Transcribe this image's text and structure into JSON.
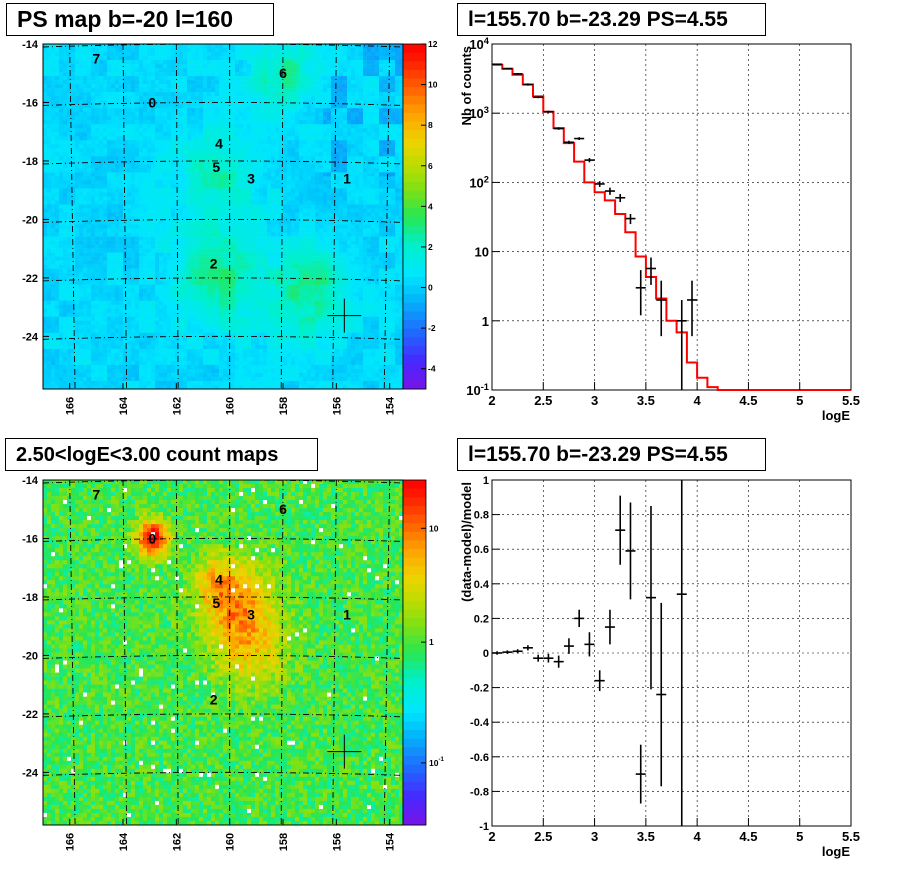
{
  "panels": {
    "ps_map": {
      "title": "PS map b=-20 l=160"
    },
    "spectrum": {
      "title": "l=155.70 b=-23.29 PS=4.55"
    },
    "count_map": {
      "title": "2.50<logE<3.00 count maps"
    },
    "residual": {
      "title": "l=155.70 b=-23.29 PS=4.55"
    }
  },
  "chart_data": [
    {
      "id": "ps_map",
      "type": "heatmap",
      "title": "PS map b=-20 l=160",
      "xlabel": "",
      "ylabel": "",
      "x_ticks": [
        "166",
        "164",
        "162",
        "160",
        "158",
        "156",
        "154"
      ],
      "y_ticks": [
        "-14",
        "-16",
        "-18",
        "-20",
        "-22",
        "-24"
      ],
      "xlim": [
        167,
        153.5
      ],
      "ylim": [
        -25.8,
        -14
      ],
      "zlim": [
        -5,
        12
      ],
      "z_ticks": [
        "-4",
        "-2",
        "0",
        "2",
        "4",
        "6",
        "8",
        "10",
        "12"
      ],
      "sources": [
        {
          "label": "7",
          "l": 165.0,
          "b": -14.5
        },
        {
          "label": "6",
          "l": 158.0,
          "b": -15.0
        },
        {
          "label": "0",
          "l": 162.9,
          "b": -16.0
        },
        {
          "label": "4",
          "l": 160.4,
          "b": -17.4
        },
        {
          "label": "5",
          "l": 160.5,
          "b": -18.2
        },
        {
          "label": "3",
          "l": 159.2,
          "b": -18.6
        },
        {
          "label": "1",
          "l": 155.6,
          "b": -18.6
        },
        {
          "label": "2",
          "l": 160.6,
          "b": -21.5
        }
      ],
      "marker": {
        "l": 155.7,
        "b": -23.29
      }
    },
    {
      "id": "spectrum",
      "type": "line",
      "title": "l=155.70 b=-23.29 PS=4.55",
      "xlabel": "logE",
      "ylabel": "Nb of counts",
      "xlim": [
        2,
        5.5
      ],
      "ylim": [
        0.1,
        10000
      ],
      "yscale": "log",
      "grid": true,
      "x_ticks": [
        "2",
        "2.5",
        "3",
        "3.5",
        "4",
        "4.5",
        "5",
        "5.5"
      ],
      "y_ticks": [
        "10^-1",
        "1",
        "10",
        "10^2",
        "10^3",
        "10^4"
      ],
      "series": [
        {
          "role": "model",
          "color": "#ff0000",
          "bin_edges": [
            2.0,
            2.1,
            2.2,
            2.3,
            2.4,
            2.5,
            2.6,
            2.7,
            2.8,
            2.9,
            3.0,
            3.1,
            3.2,
            3.3,
            3.4,
            3.5,
            3.6,
            3.7,
            3.8,
            3.9,
            4.0,
            4.1,
            4.2,
            5.5
          ],
          "values": [
            5000,
            4400,
            3600,
            2600,
            1750,
            1050,
            610,
            370,
            200,
            100,
            72,
            55,
            35,
            19,
            8.5,
            4.3,
            2.1,
            1.0,
            0.68,
            0.25,
            0.15,
            0.11,
            0.1
          ]
        },
        {
          "role": "data",
          "color": "#000000",
          "points": [
            {
              "x": 2.05,
              "y": 5100,
              "lo": 5000,
              "hi": 5200
            },
            {
              "x": 2.15,
              "y": 4400,
              "lo": 4300,
              "hi": 4500
            },
            {
              "x": 2.25,
              "y": 3700,
              "lo": 3600,
              "hi": 3800
            },
            {
              "x": 2.35,
              "y": 2600,
              "lo": 2500,
              "hi": 2700
            },
            {
              "x": 2.45,
              "y": 1700,
              "lo": 1650,
              "hi": 1750
            },
            {
              "x": 2.55,
              "y": 1050,
              "lo": 1010,
              "hi": 1090
            },
            {
              "x": 2.65,
              "y": 600,
              "lo": 575,
              "hi": 625
            },
            {
              "x": 2.75,
              "y": 380,
              "lo": 360,
              "hi": 400
            },
            {
              "x": 2.85,
              "y": 430,
              "lo": 410,
              "hi": 450
            },
            {
              "x": 2.95,
              "y": 210,
              "lo": 195,
              "hi": 225
            },
            {
              "x": 3.05,
              "y": 95,
              "lo": 86,
              "hi": 104
            },
            {
              "x": 3.15,
              "y": 75,
              "lo": 66,
              "hi": 84
            },
            {
              "x": 3.25,
              "y": 60,
              "lo": 52,
              "hi": 68
            },
            {
              "x": 3.35,
              "y": 30,
              "lo": 25,
              "hi": 35
            },
            {
              "x": 3.45,
              "y": 3.0,
              "lo": 1.2,
              "hi": 5.4
            },
            {
              "x": 3.55,
              "y": 5.7,
              "lo": 3.3,
              "hi": 8.2
            },
            {
              "x": 3.65,
              "y": 2.0,
              "lo": 0.6,
              "hi": 3.8
            },
            {
              "x": 3.85,
              "y": 1.0,
              "lo": 0.1,
              "hi": 2.0
            },
            {
              "x": 3.95,
              "y": 2.0,
              "lo": 0.6,
              "hi": 3.8
            }
          ]
        }
      ]
    },
    {
      "id": "count_map",
      "type": "heatmap",
      "title": "2.50<logE<3.00 count maps",
      "xlabel": "",
      "ylabel": "",
      "x_ticks": [
        "166",
        "164",
        "162",
        "160",
        "158",
        "156",
        "154"
      ],
      "y_ticks": [
        "-14",
        "-16",
        "-18",
        "-20",
        "-22",
        "-24"
      ],
      "xlim": [
        167,
        153.5
      ],
      "ylim": [
        -25.8,
        -14
      ],
      "zscale": "log",
      "z_ticks": [
        "10^-1",
        "1",
        "10"
      ],
      "sources": [
        {
          "label": "7",
          "l": 165.0,
          "b": -14.5
        },
        {
          "label": "6",
          "l": 158.0,
          "b": -15.0
        },
        {
          "label": "0",
          "l": 162.9,
          "b": -16.0
        },
        {
          "label": "4",
          "l": 160.4,
          "b": -17.4
        },
        {
          "label": "5",
          "l": 160.5,
          "b": -18.2
        },
        {
          "label": "3",
          "l": 159.2,
          "b": -18.6
        },
        {
          "label": "1",
          "l": 155.6,
          "b": -18.6
        },
        {
          "label": "2",
          "l": 160.6,
          "b": -21.5
        }
      ],
      "marker": {
        "l": 155.7,
        "b": -23.29
      }
    },
    {
      "id": "residual",
      "type": "scatter",
      "title": "l=155.70 b=-23.29 PS=4.55",
      "xlabel": "logE",
      "ylabel": "(data-model)/model",
      "xlim": [
        2,
        5.5
      ],
      "ylim": [
        -1,
        1
      ],
      "grid": true,
      "x_ticks": [
        "2",
        "2.5",
        "3",
        "3.5",
        "4",
        "4.5",
        "5",
        "5.5"
      ],
      "y_ticks": [
        "-1",
        "-0.8",
        "-0.6",
        "-0.4",
        "-0.2",
        "0",
        "0.2",
        "0.4",
        "0.6",
        "0.8",
        "1"
      ],
      "points": [
        {
          "x": 2.05,
          "y": 0.0,
          "err": 0.01
        },
        {
          "x": 2.15,
          "y": 0.005,
          "err": 0.01
        },
        {
          "x": 2.25,
          "y": 0.01,
          "err": 0.012
        },
        {
          "x": 2.35,
          "y": 0.03,
          "err": 0.015
        },
        {
          "x": 2.45,
          "y": -0.03,
          "err": 0.02
        },
        {
          "x": 2.55,
          "y": -0.03,
          "err": 0.025
        },
        {
          "x": 2.65,
          "y": -0.05,
          "err": 0.035
        },
        {
          "x": 2.75,
          "y": 0.04,
          "err": 0.045
        },
        {
          "x": 2.85,
          "y": 0.2,
          "err": 0.05
        },
        {
          "x": 2.95,
          "y": 0.05,
          "err": 0.07
        },
        {
          "x": 3.05,
          "y": -0.16,
          "err": 0.06
        },
        {
          "x": 3.15,
          "y": 0.15,
          "err": 0.1
        },
        {
          "x": 3.25,
          "y": 0.71,
          "err": 0.2
        },
        {
          "x": 3.35,
          "y": 0.59,
          "err": 0.28
        },
        {
          "x": 3.45,
          "y": -0.7,
          "err": 0.17
        },
        {
          "x": 3.55,
          "y": 0.32,
          "err": 0.53
        },
        {
          "x": 3.65,
          "y": -0.24,
          "err": 0.53
        },
        {
          "x": 3.85,
          "y": 0.34,
          "err": 1.4
        }
      ]
    }
  ]
}
